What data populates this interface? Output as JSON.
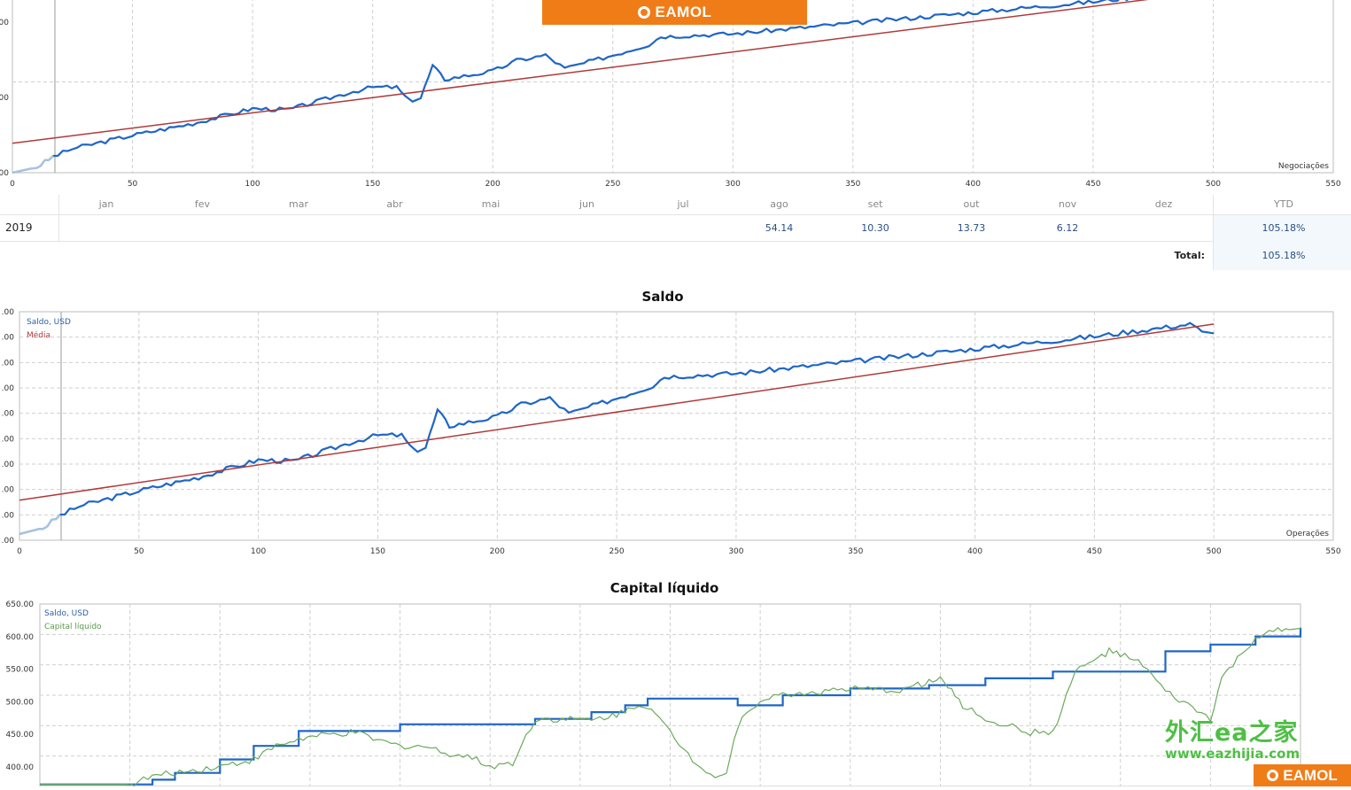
{
  "top_banner": {
    "brand": "EAMOL"
  },
  "watermark": {
    "line1": "外汇ea之家",
    "line2": "www.eazhijia.com",
    "brand": "EAMOL"
  },
  "returns_table": {
    "months": [
      "jan",
      "fev",
      "mar",
      "abr",
      "mai",
      "jun",
      "jul",
      "ago",
      "set",
      "out",
      "nov",
      "dez"
    ],
    "ytd_header": "YTD",
    "year": "2019",
    "values": [
      "",
      "",
      "",
      "",
      "",
      "",
      "",
      "54.14",
      "10.30",
      "13.73",
      "6.12",
      ""
    ],
    "ytd": "105.18%",
    "total_label": "Total:",
    "total": "105.18%"
  },
  "colors": {
    "balance": "#1f66c6",
    "average": "#b03a3a",
    "equity": "#6aaa5a",
    "grid": "#cfcfcf",
    "early": "#a8c2e0"
  },
  "chart_data": [
    {
      "type": "line",
      "title": "",
      "xlabel": "Negociações",
      "xlim": [
        0,
        550
      ],
      "x_ticks": [
        0,
        50,
        100,
        150,
        200,
        250,
        300,
        350,
        400,
        450,
        500,
        550
      ],
      "y_ticks": [
        "00",
        "00",
        "00"
      ],
      "series": [
        {
          "role": "balance",
          "x": [
            0,
            10,
            17,
            25,
            35,
            50,
            75,
            100,
            115,
            140,
            150,
            160,
            165,
            170,
            175,
            180,
            200,
            210,
            222,
            230,
            250,
            265,
            270,
            300,
            350,
            400,
            450,
            490,
            495,
            500
          ],
          "y": [
            300,
            310,
            330,
            345,
            355,
            370,
            392,
            420,
            418,
            450,
            460,
            460,
            435,
            440,
            500,
            475,
            490,
            510,
            520,
            495,
            520,
            540,
            555,
            560,
            580,
            600,
            620,
            640,
            628,
            625
          ]
        },
        {
          "role": "average",
          "x": [
            0,
            500
          ],
          "y": [
            355,
            640
          ]
        }
      ]
    },
    {
      "type": "line",
      "title": "Saldo",
      "xlabel": "Operações",
      "xlim": [
        0,
        550
      ],
      "x_ticks": [
        0,
        50,
        100,
        150,
        200,
        250,
        300,
        350,
        400,
        450,
        500,
        550
      ],
      "y_ticks": [
        ".00",
        ".00",
        ".00",
        ".00",
        ".00",
        ".00",
        ".00",
        ".00",
        ".00",
        ".00"
      ],
      "legend": [
        "Saldo, USD",
        "Média"
      ],
      "series": [
        {
          "name": "Saldo, USD",
          "x": [
            0,
            10,
            17,
            25,
            35,
            50,
            75,
            100,
            115,
            140,
            150,
            160,
            165,
            170,
            175,
            180,
            200,
            210,
            222,
            230,
            250,
            265,
            270,
            300,
            350,
            400,
            450,
            490,
            495,
            500
          ],
          "y": [
            300,
            310,
            330,
            345,
            355,
            370,
            392,
            420,
            418,
            450,
            460,
            460,
            435,
            440,
            500,
            475,
            490,
            510,
            520,
            495,
            520,
            540,
            555,
            560,
            580,
            600,
            620,
            640,
            628,
            625
          ]
        },
        {
          "name": "Média",
          "x": [
            0,
            500
          ],
          "y": [
            355,
            640
          ]
        }
      ]
    },
    {
      "type": "line",
      "title": "Capital líquido",
      "ylim": [
        380,
        650
      ],
      "y_ticks": [
        "650.00",
        "600.00",
        "550.00",
        "500.00",
        "450.00",
        "400.00"
      ],
      "legend": [
        "Saldo, USD",
        "Capital líquido"
      ],
      "series": [
        {
          "name": "Saldo, USD",
          "x": [
            0,
            40,
            50,
            60,
            80,
            95,
            115,
            140,
            160,
            190,
            220,
            245,
            260,
            270,
            280,
            300,
            310,
            330,
            360,
            395,
            420,
            450,
            470,
            500,
            520,
            540,
            560
          ],
          "y": [
            383,
            383,
            390,
            400,
            420,
            440,
            462,
            462,
            472,
            472,
            480,
            490,
            500,
            510,
            510,
            510,
            500,
            515,
            525,
            530,
            540,
            550,
            550,
            580,
            590,
            602,
            615
          ]
        },
        {
          "name": "Capital líquido",
          "x": [
            0,
            40,
            50,
            60,
            80,
            95,
            105,
            115,
            125,
            140,
            150,
            160,
            170,
            180,
            190,
            200,
            210,
            220,
            230,
            245,
            260,
            262,
            270,
            275,
            280,
            290,
            300,
            305,
            310,
            320,
            330,
            345,
            360,
            380,
            390,
            395,
            400,
            405,
            410,
            420,
            430,
            440,
            450,
            460,
            470,
            475,
            480,
            490,
            500,
            510,
            520,
            525,
            530,
            540,
            550,
            555,
            560
          ],
          "y": [
            383,
            383,
            395,
            400,
            410,
            420,
            440,
            450,
            455,
            460,
            448,
            440,
            440,
            430,
            425,
            410,
            415,
            480,
            480,
            478,
            490,
            500,
            500,
            480,
            460,
            420,
            395,
            400,
            470,
            510,
            515,
            520,
            524,
            522,
            530,
            535,
            540,
            520,
            500,
            480,
            470,
            460,
            460,
            550,
            570,
            580,
            575,
            560,
            520,
            500,
            480,
            540,
            560,
            600,
            610,
            612,
            614
          ]
        }
      ]
    }
  ]
}
